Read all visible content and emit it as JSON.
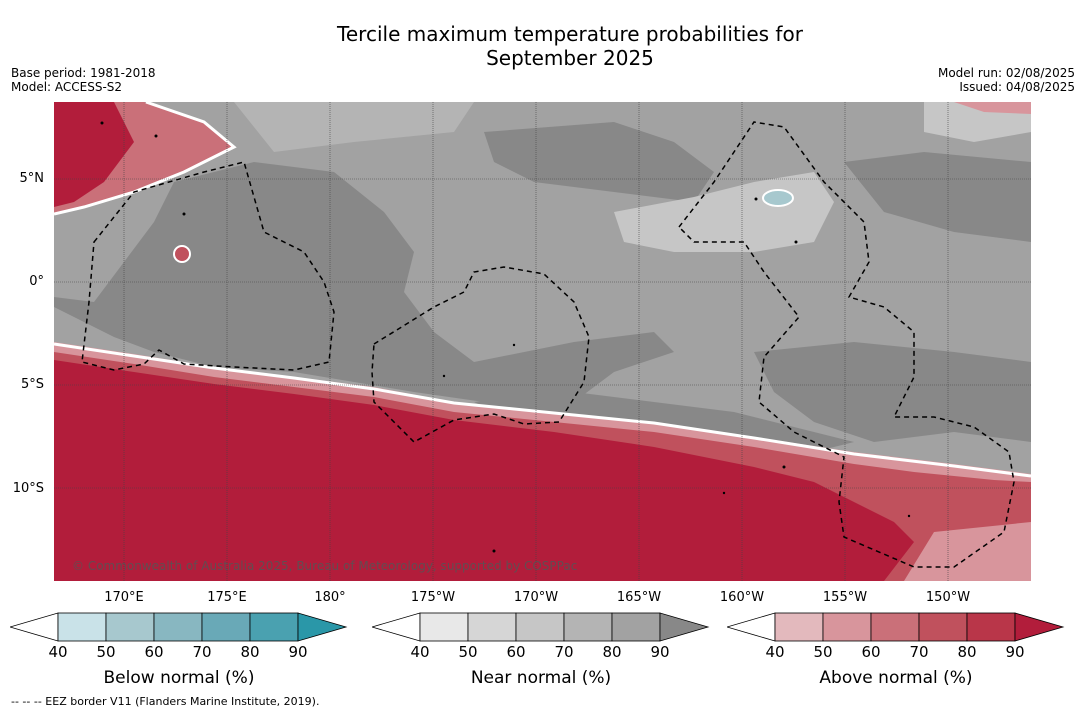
{
  "title_line1": "Tercile maximum temperature probabilities for",
  "title_line2": "September 2025",
  "meta_left": [
    "Base period: 1981-2018",
    "Model: ACCESS-S2"
  ],
  "meta_right": [
    "Model run: 02/08/2025",
    "Issued: 04/08/2025"
  ],
  "copyright": "© Commonwealth of Australia 2025, Bureau of Meteorology, supported by COSPPac",
  "footnote": "--  --  -- EEZ border V11 (Flanders Marine Institute, 2019).",
  "lat_labels": [
    "5°N",
    "0°",
    "5°S",
    "10°S"
  ],
  "lon_labels": [
    "170°E",
    "175°E",
    "180°",
    "175°W",
    "170°W",
    "165°W",
    "160°W",
    "155°W",
    "150°W"
  ],
  "legends": [
    {
      "title": "Below normal (%)",
      "ticks": [
        "40",
        "50",
        "60",
        "70",
        "80",
        "90"
      ],
      "colors": [
        "#c9e2e8",
        "#a7c8ce",
        "#88b7c1",
        "#69a9b7",
        "#4aa1b0",
        "#2a97a8"
      ]
    },
    {
      "title": "Near normal (%)",
      "ticks": [
        "40",
        "50",
        "60",
        "70",
        "80",
        "90"
      ],
      "colors": [
        "#e8e8e8",
        "#d6d6d6",
        "#c6c6c6",
        "#b4b4b4",
        "#a2a2a2",
        "#888888"
      ]
    },
    {
      "title": "Above normal (%)",
      "ticks": [
        "40",
        "50",
        "60",
        "70",
        "80",
        "90"
      ],
      "colors": [
        "#e3b9bd",
        "#d8959c",
        "#ca7079",
        "#c0515d",
        "#b93649",
        "#b21d3b"
      ]
    }
  ]
}
